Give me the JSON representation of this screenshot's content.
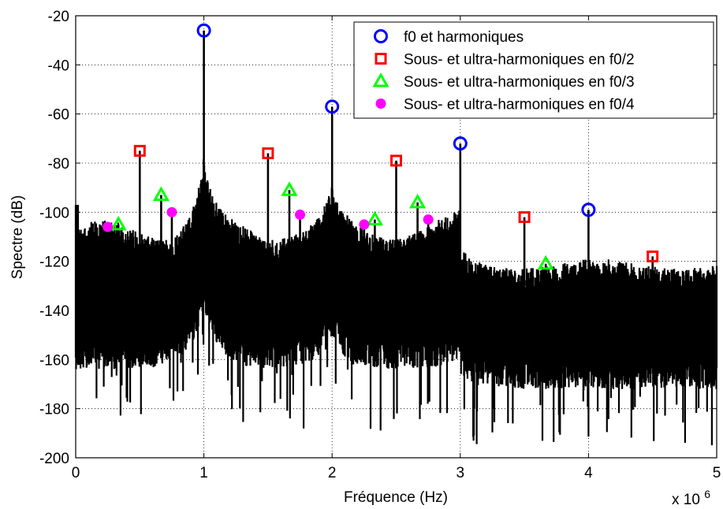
{
  "chart_data": {
    "type": "line",
    "xlabel": "Fréquence (Hz)",
    "ylabel": "Spectre (dB)",
    "xlim": [
      0,
      5000000
    ],
    "ylim": [
      -200,
      -20
    ],
    "x_scale_exponent_label": "x 10",
    "x_scale_exponent_power": "6",
    "x_ticks": [
      0,
      1,
      2,
      3,
      4,
      5
    ],
    "x_tick_labels": [
      "0",
      "1",
      "2",
      "3",
      "4",
      "5"
    ],
    "y_ticks": [
      -200,
      -180,
      -160,
      -140,
      -120,
      -100,
      -80,
      -60,
      -40,
      -20
    ],
    "y_tick_labels": [
      "-200",
      "-180",
      "-160",
      "-140",
      "-120",
      "-100",
      "-80",
      "-60",
      "-40",
      "-20"
    ],
    "grid": true,
    "legend_position": "top-right",
    "colors": {
      "spectrum": "#000000",
      "f0": "#0000ff",
      "f0_2": "#ff0000",
      "f0_3": "#00ff00",
      "f0_4": "#ff00ff"
    },
    "series": [
      {
        "name": "f0 et harmoniques",
        "marker": "circle",
        "x": [
          1000000,
          2000000,
          3000000,
          4000000
        ],
        "y": [
          -26,
          -57,
          -72,
          -99
        ]
      },
      {
        "name": "Sous- et ultra-harmoniques en f0/2",
        "marker": "square",
        "x": [
          500000,
          1500000,
          2500000,
          3500000,
          4500000
        ],
        "y": [
          -75,
          -76,
          -79,
          -102,
          -118
        ]
      },
      {
        "name": "Sous- et ultra-harmoniques en f0/3",
        "marker": "triangle",
        "x": [
          333333,
          666667,
          1666667,
          2333333,
          2666667,
          3666667
        ],
        "y": [
          -105,
          -93,
          -91,
          -103,
          -96,
          -121
        ]
      },
      {
        "name": "Sous- et ultra-harmoniques en f0/4",
        "marker": "dot",
        "x": [
          250000,
          750000,
          1750000,
          2250000,
          2750000
        ],
        "y": [
          -106,
          -100,
          -101,
          -105,
          -103
        ]
      }
    ]
  }
}
